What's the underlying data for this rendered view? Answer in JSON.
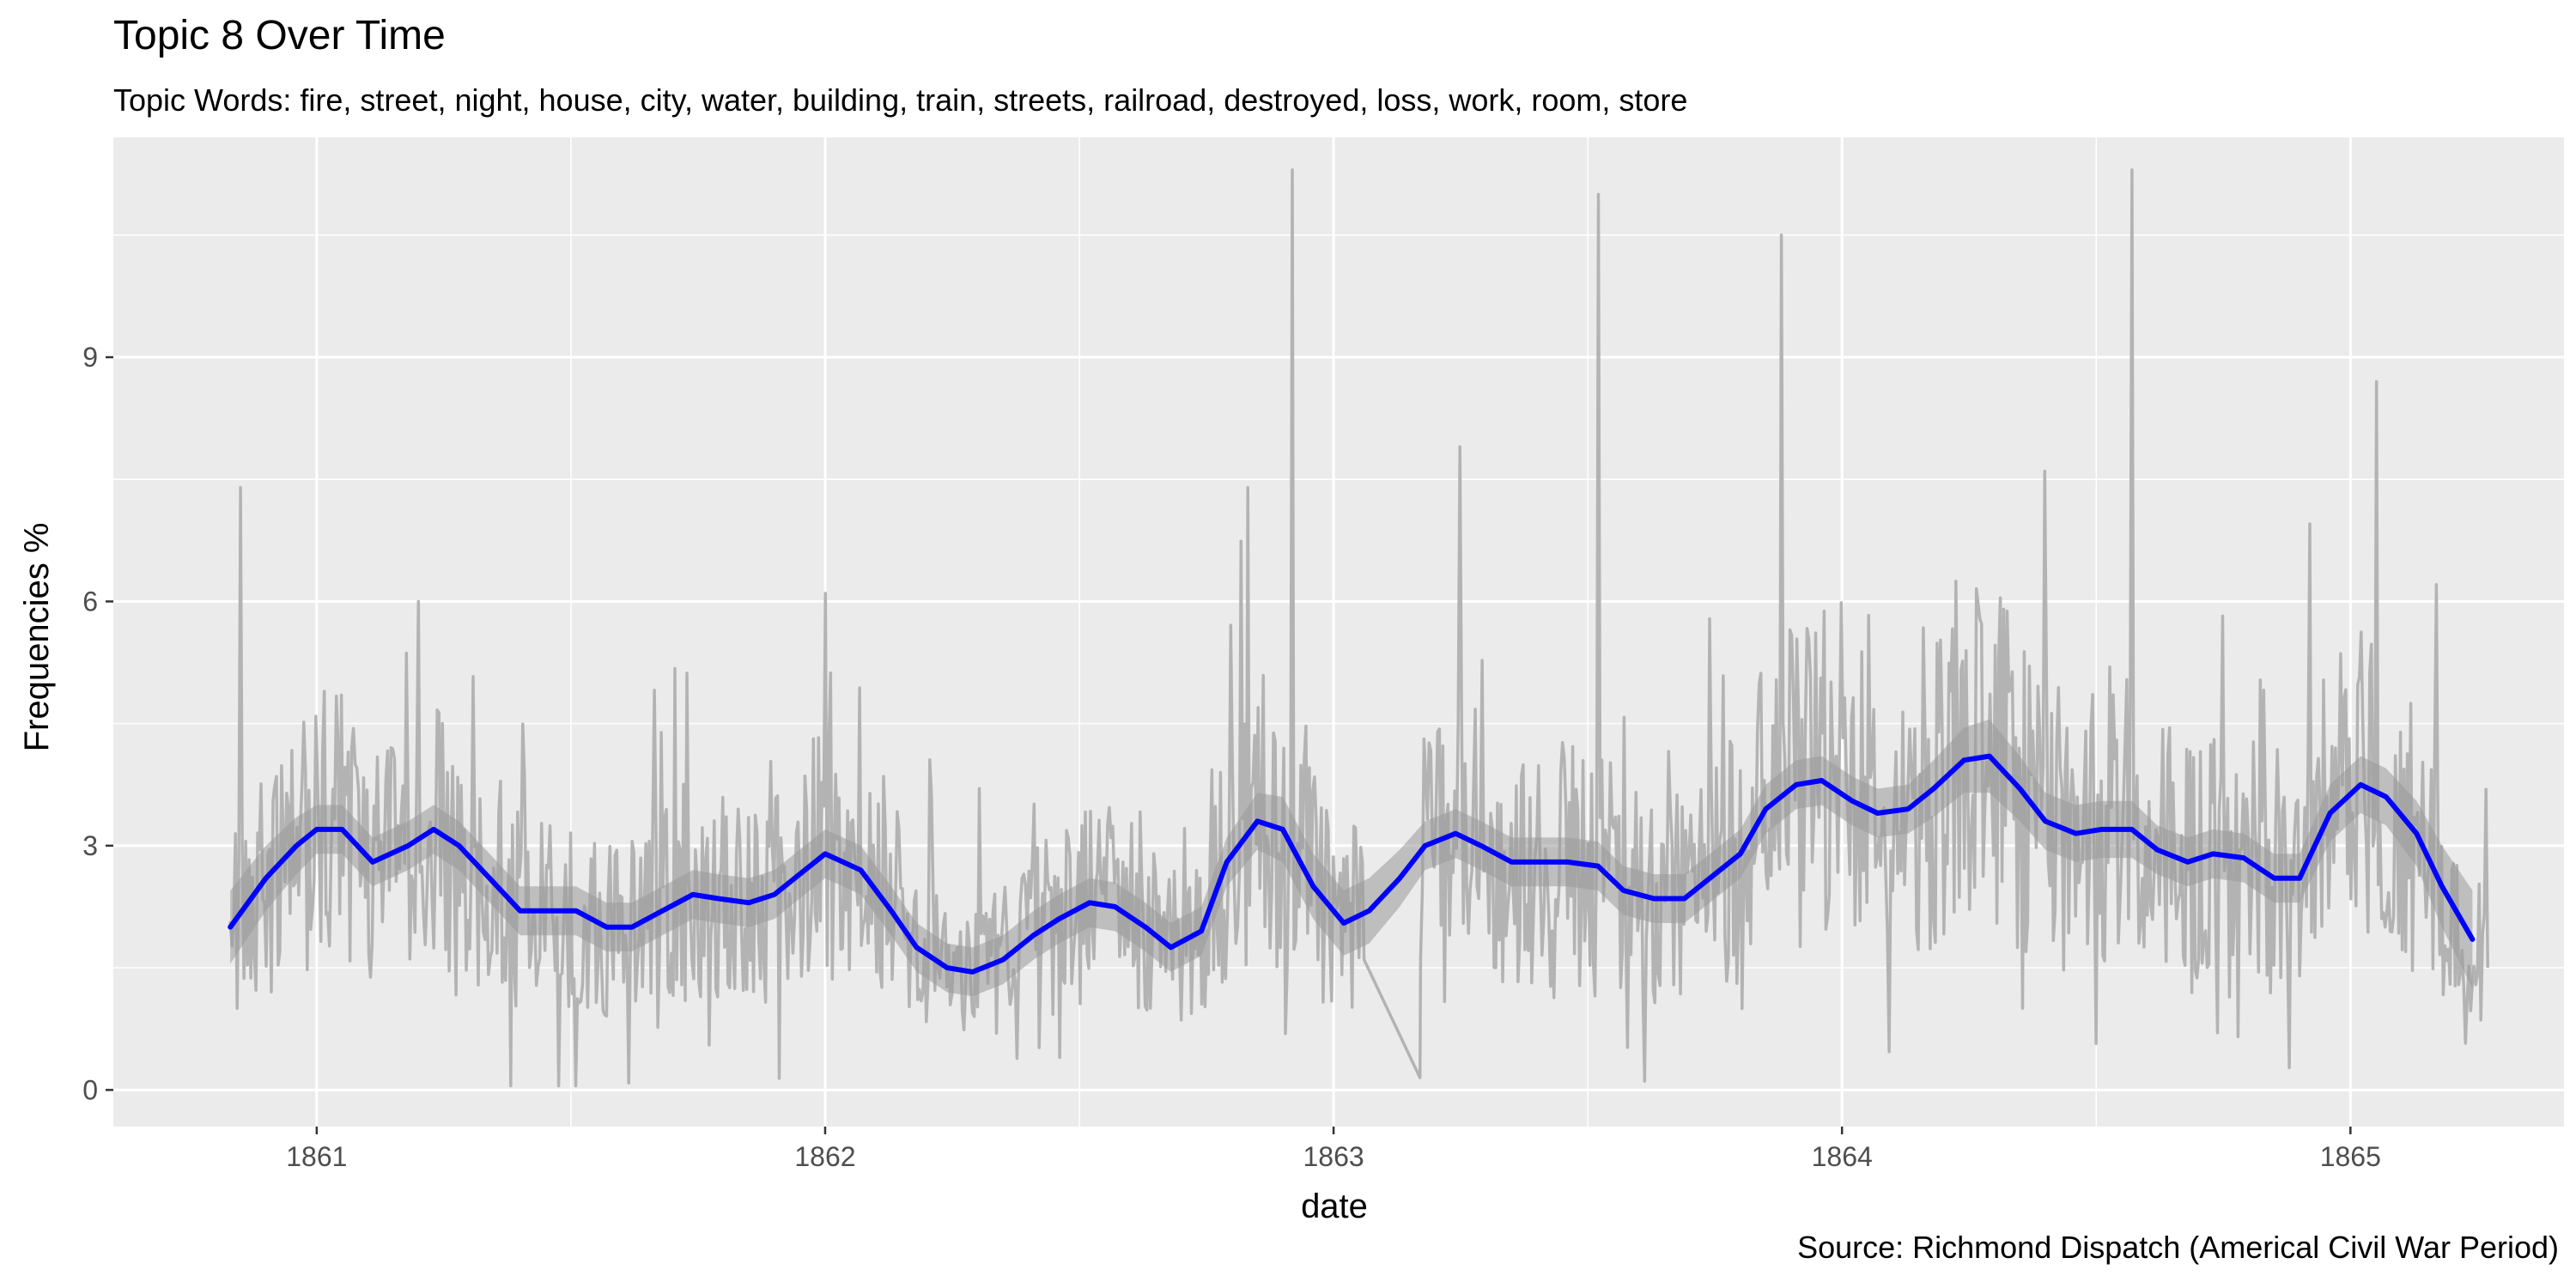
{
  "title": "Topic 8 Over Time",
  "subtitle": "Topic Words: fire, street, night, house, city, water, building, train, streets, railroad, destroyed, loss, work, room, store",
  "caption": "Source: Richmond Dispatch (Americal Civil War Period)",
  "colors": {
    "panel_background": "#ebebeb",
    "grid": "#ffffff",
    "raw_line": "#b3b3b3",
    "ribbon": "#999999",
    "smooth_line": "#0000ff"
  },
  "chart_data": {
    "type": "line",
    "title": "Topic 8 Over Time",
    "subtitle": "Topic Words: fire, street, night, house, city, water, building, train, streets, railroad, destroyed, loss, work, room, store",
    "xlabel": "date",
    "ylabel": "Frequencies %",
    "x_scale": "date (years)",
    "xlim": [
      1860.6,
      1865.42
    ],
    "ylim": [
      -0.45,
      11.7
    ],
    "x_ticks": [
      1861,
      1862,
      1863,
      1864,
      1865
    ],
    "x_tick_labels": [
      "1861",
      "1862",
      "1863",
      "1864",
      "1865"
    ],
    "y_ticks": [
      0,
      3,
      6,
      9
    ],
    "y_tick_labels": [
      "0",
      "3",
      "6",
      "9"
    ],
    "grid": true,
    "legend": "none",
    "series": [
      {
        "kind": "smoothed trend (loess) with confidence band",
        "x": [
          1860.83,
          1860.9,
          1860.96,
          1861.0,
          1861.05,
          1861.11,
          1861.18,
          1861.23,
          1861.28,
          1861.34,
          1861.4,
          1861.46,
          1861.51,
          1861.57,
          1861.62,
          1861.68,
          1861.74,
          1861.79,
          1861.85,
          1861.9,
          1861.96,
          1862.0,
          1862.07,
          1862.13,
          1862.18,
          1862.24,
          1862.29,
          1862.35,
          1862.41,
          1862.46,
          1862.52,
          1862.57,
          1862.63,
          1862.68,
          1862.74,
          1862.79,
          1862.85,
          1862.9,
          1862.96,
          1863.02,
          1863.07,
          1863.13,
          1863.18,
          1863.24,
          1863.29,
          1863.35,
          1863.41,
          1863.46,
          1863.52,
          1863.57,
          1863.63,
          1863.69,
          1863.74,
          1863.8,
          1863.85,
          1863.91,
          1863.96,
          1864.02,
          1864.07,
          1864.13,
          1864.18,
          1864.24,
          1864.29,
          1864.35,
          1864.4,
          1864.46,
          1864.51,
          1864.57,
          1864.62,
          1864.68,
          1864.73,
          1864.79,
          1864.85,
          1864.9,
          1864.96,
          1865.02,
          1865.07,
          1865.13,
          1865.18,
          1865.24
        ],
        "y": [
          2.0,
          2.6,
          3.0,
          3.2,
          3.2,
          2.8,
          3.0,
          3.2,
          3.0,
          2.6,
          2.2,
          2.2,
          2.2,
          2.0,
          2.0,
          2.2,
          2.4,
          2.35,
          2.3,
          2.4,
          2.7,
          2.9,
          2.7,
          2.2,
          1.75,
          1.5,
          1.45,
          1.6,
          1.9,
          2.1,
          2.3,
          2.25,
          2.0,
          1.75,
          1.95,
          2.8,
          3.3,
          3.2,
          2.5,
          2.05,
          2.2,
          2.6,
          3.0,
          3.15,
          3.0,
          2.8,
          2.8,
          2.8,
          2.75,
          2.45,
          2.35,
          2.35,
          2.6,
          2.9,
          3.45,
          3.75,
          3.8,
          3.55,
          3.4,
          3.45,
          3.7,
          4.05,
          4.1,
          3.7,
          3.3,
          3.15,
          3.2,
          3.2,
          2.95,
          2.8,
          2.9,
          2.85,
          2.6,
          2.6,
          3.4,
          3.75,
          3.6,
          3.15,
          2.5,
          1.85
        ],
        "band_half_width": [
          0.45,
          0.4,
          0.35,
          0.3,
          0.3,
          0.3,
          0.3,
          0.3,
          0.3,
          0.3,
          0.3,
          0.3,
          0.3,
          0.3,
          0.3,
          0.3,
          0.3,
          0.3,
          0.3,
          0.3,
          0.3,
          0.3,
          0.3,
          0.3,
          0.3,
          0.3,
          0.3,
          0.3,
          0.3,
          0.3,
          0.3,
          0.3,
          0.3,
          0.3,
          0.3,
          0.3,
          0.35,
          0.4,
          0.4,
          0.4,
          0.4,
          0.35,
          0.3,
          0.3,
          0.3,
          0.3,
          0.3,
          0.3,
          0.3,
          0.3,
          0.3,
          0.3,
          0.3,
          0.3,
          0.3,
          0.3,
          0.3,
          0.3,
          0.3,
          0.3,
          0.35,
          0.4,
          0.45,
          0.4,
          0.35,
          0.35,
          0.35,
          0.35,
          0.3,
          0.3,
          0.3,
          0.3,
          0.3,
          0.3,
          0.35,
          0.35,
          0.35,
          0.4,
          0.5,
          0.6
        ]
      },
      {
        "kind": "raw daily frequencies",
        "x_range": [
          1860.83,
          1865.27
        ],
        "notable_peaks": [
          {
            "x": 1860.85,
            "y": 7.4
          },
          {
            "x": 1861.2,
            "y": 6.0
          },
          {
            "x": 1862.0,
            "y": 6.1
          },
          {
            "x": 1862.83,
            "y": 7.4
          },
          {
            "x": 1862.92,
            "y": 11.3
          },
          {
            "x": 1863.25,
            "y": 7.9
          },
          {
            "x": 1863.52,
            "y": 11.0
          },
          {
            "x": 1863.88,
            "y": 10.5
          },
          {
            "x": 1864.4,
            "y": 7.6
          },
          {
            "x": 1864.57,
            "y": 11.3
          },
          {
            "x": 1865.05,
            "y": 8.7
          }
        ],
        "notable_gap": {
          "x_start": 1863.06,
          "x_end": 1863.17,
          "y_start": 1.6,
          "y_end": 0.15
        }
      }
    ]
  }
}
